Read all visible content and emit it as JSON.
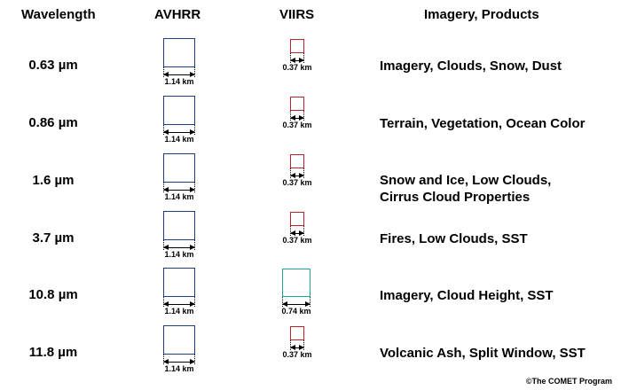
{
  "headers": {
    "wavelength": "Wavelength",
    "avhrr": "AVHRR",
    "viirs": "VIIRS",
    "products": "Imagery, Products"
  },
  "rows": [
    {
      "wavelength": "0.63 µm",
      "avhrr_dim": "1.14 km",
      "viirs_dim": "0.37 km",
      "products": [
        "Imagery, Clouds, Snow, Dust"
      ]
    },
    {
      "wavelength": "0.86 µm",
      "avhrr_dim": "1.14 km",
      "viirs_dim": "0.37 km",
      "products": [
        "Terrain, Vegetation, Ocean Color"
      ]
    },
    {
      "wavelength": "1.6 µm",
      "avhrr_dim": "1.14 km",
      "viirs_dim": "0.37 km",
      "products": [
        "Snow and Ice, Low Clouds,",
        "Cirrus Cloud Properties"
      ]
    },
    {
      "wavelength": "3.7 µm",
      "avhrr_dim": "1.14 km",
      "viirs_dim": "0.37 km",
      "products": [
        "Fires, Low Clouds, SST"
      ]
    },
    {
      "wavelength": "10.8 µm",
      "avhrr_dim": "1.14 km",
      "viirs_dim": "0.74 km",
      "products": [
        "Imagery, Cloud Height, SST"
      ]
    },
    {
      "wavelength": "11.8 µm",
      "avhrr_dim": "1.14 km",
      "viirs_dim": "0.37 km",
      "products": [
        "Volcanic Ash, Split Window, SST"
      ]
    }
  ],
  "colors": {
    "avhrr": "#1f3f7a",
    "viirs_small": "#c0202a",
    "viirs_large": "#1aa89a"
  },
  "credit": "©The COMET Program"
}
